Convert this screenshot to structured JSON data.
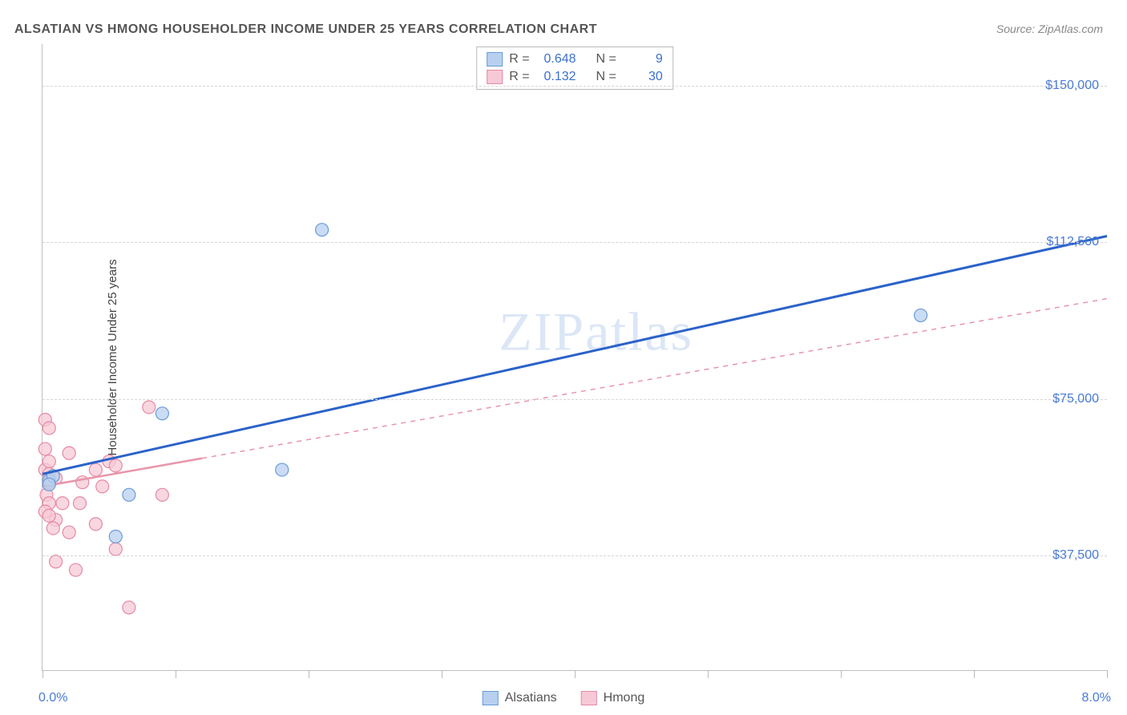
{
  "title": "ALSATIAN VS HMONG HOUSEHOLDER INCOME UNDER 25 YEARS CORRELATION CHART",
  "source": "Source: ZipAtlas.com",
  "watermark": "ZIPatlas",
  "ylabel": "Householder Income Under 25 years",
  "chart": {
    "type": "scatter-with-regression",
    "background": "#ffffff",
    "grid_color": "#d6d6d6",
    "axis_color": "#c0c0c0",
    "xlim": [
      0,
      8
    ],
    "ylim": [
      10000,
      160000
    ],
    "xticks_pct": [
      0,
      1,
      2,
      3,
      4,
      5,
      6,
      7,
      8
    ],
    "yticks": [
      {
        "v": 37500,
        "label": "$37,500"
      },
      {
        "v": 75000,
        "label": "$75,000"
      },
      {
        "v": 112500,
        "label": "$112,500"
      },
      {
        "v": 150000,
        "label": "$150,000"
      }
    ],
    "x_min_label": "0.0%",
    "x_max_label": "8.0%",
    "tick_label_color": "#4a7ad6",
    "series": [
      {
        "name": "Alsatians",
        "color_fill": "#b8d0ef",
        "color_stroke": "#6a9bd8",
        "trend_color": "#2b62c9",
        "trend_width": 3,
        "trend_dash": "none",
        "R": "0.648",
        "N": "9",
        "points": [
          {
            "x": 0.05,
            "y": 55500
          },
          {
            "x": 0.08,
            "y": 56500
          },
          {
            "x": 0.05,
            "y": 54500
          },
          {
            "x": 0.55,
            "y": 42000
          },
          {
            "x": 0.65,
            "y": 52000
          },
          {
            "x": 0.9,
            "y": 71500
          },
          {
            "x": 1.8,
            "y": 58000
          },
          {
            "x": 2.1,
            "y": 115500
          },
          {
            "x": 6.6,
            "y": 95000
          }
        ],
        "trend": {
          "x1": 0,
          "y1": 57000,
          "x2": 8,
          "y2": 114000
        }
      },
      {
        "name": "Hmong",
        "color_fill": "#f7c9d6",
        "color_stroke": "#e689a5",
        "trend_color": "#e895aa",
        "trend_width": 2.5,
        "trend_dash_solid_until": 1.2,
        "R": "0.132",
        "N": "30",
        "points": [
          {
            "x": 0.02,
            "y": 70000
          },
          {
            "x": 0.05,
            "y": 68000
          },
          {
            "x": 0.02,
            "y": 63000
          },
          {
            "x": 0.02,
            "y": 58000
          },
          {
            "x": 0.05,
            "y": 60000
          },
          {
            "x": 0.05,
            "y": 57000
          },
          {
            "x": 0.1,
            "y": 56000
          },
          {
            "x": 0.05,
            "y": 55000
          },
          {
            "x": 0.03,
            "y": 52000
          },
          {
            "x": 0.05,
            "y": 50000
          },
          {
            "x": 0.02,
            "y": 48000
          },
          {
            "x": 0.1,
            "y": 46000
          },
          {
            "x": 0.08,
            "y": 44000
          },
          {
            "x": 0.2,
            "y": 43000
          },
          {
            "x": 0.05,
            "y": 47000
          },
          {
            "x": 0.1,
            "y": 36000
          },
          {
            "x": 0.25,
            "y": 34000
          },
          {
            "x": 0.15,
            "y": 50000
          },
          {
            "x": 0.3,
            "y": 55000
          },
          {
            "x": 0.28,
            "y": 50000
          },
          {
            "x": 0.4,
            "y": 58000
          },
          {
            "x": 0.45,
            "y": 54000
          },
          {
            "x": 0.5,
            "y": 60000
          },
          {
            "x": 0.55,
            "y": 59000
          },
          {
            "x": 0.55,
            "y": 39000
          },
          {
            "x": 0.65,
            "y": 25000
          },
          {
            "x": 0.8,
            "y": 73000
          },
          {
            "x": 0.9,
            "y": 52000
          },
          {
            "x": 0.4,
            "y": 45000
          },
          {
            "x": 0.2,
            "y": 62000
          }
        ],
        "trend": {
          "x1": 0,
          "y1": 54000,
          "x2": 8,
          "y2": 99000
        }
      }
    ]
  },
  "legend": {
    "series1": "Alsatians",
    "series2": "Hmong"
  },
  "stats_labels": {
    "R": "R =",
    "N": "N ="
  }
}
